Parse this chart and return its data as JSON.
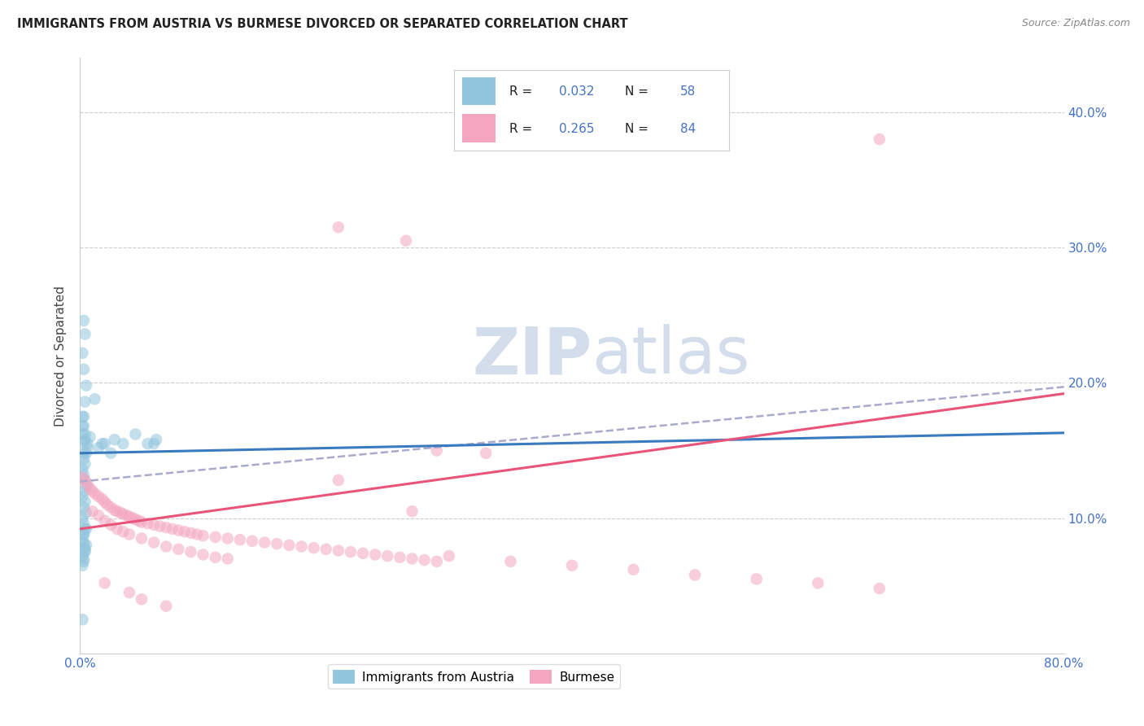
{
  "title": "IMMIGRANTS FROM AUSTRIA VS BURMESE DIVORCED OR SEPARATED CORRELATION CHART",
  "source": "Source: ZipAtlas.com",
  "ylabel": "Divorced or Separated",
  "xlim": [
    0.0,
    0.8
  ],
  "ylim": [
    0.0,
    0.44
  ],
  "x_tick_positions": [
    0.0,
    0.1,
    0.2,
    0.3,
    0.4,
    0.5,
    0.6,
    0.7,
    0.8
  ],
  "x_tick_labels": [
    "0.0%",
    "",
    "",
    "",
    "",
    "",
    "",
    "",
    "80.0%"
  ],
  "y_tick_positions": [
    0.0,
    0.1,
    0.2,
    0.3,
    0.4
  ],
  "y_tick_labels": [
    "",
    "10.0%",
    "20.0%",
    "30.0%",
    "40.0%"
  ],
  "blue_scatter_color": "#92c5de",
  "pink_scatter_color": "#f4a6c0",
  "blue_line_color": "#3a7abf",
  "pink_line_color": "#e8547a",
  "dashed_line_color": "#aaaacc",
  "grid_color": "#cccccc",
  "tick_label_color": "#4472c4",
  "watermark_color": "#ccd8e8",
  "legend_r1_val": "0.032",
  "legend_n1_val": "58",
  "legend_r2_val": "0.265",
  "legend_n2_val": "84",
  "austria_N": 58,
  "burmese_N": 84,
  "blue_line": [
    0.0,
    0.148,
    0.8,
    0.163
  ],
  "pink_line": [
    0.0,
    0.092,
    0.8,
    0.192
  ],
  "dashed_line": [
    0.0,
    0.127,
    0.8,
    0.197
  ],
  "austria_x": [
    0.003,
    0.004,
    0.002,
    0.003,
    0.005,
    0.004,
    0.003,
    0.002,
    0.004,
    0.003,
    0.006,
    0.005,
    0.003,
    0.004,
    0.002,
    0.003,
    0.004,
    0.005,
    0.003,
    0.002,
    0.004,
    0.003,
    0.005,
    0.002,
    0.003,
    0.004,
    0.003,
    0.002,
    0.005,
    0.004,
    0.003,
    0.006,
    0.002,
    0.004,
    0.003,
    0.002,
    0.012,
    0.008,
    0.018,
    0.025,
    0.035,
    0.015,
    0.02,
    0.028,
    0.045,
    0.055,
    0.062,
    0.06,
    0.002,
    0.003,
    0.004,
    0.003,
    0.002,
    0.003,
    0.004,
    0.002,
    0.005,
    0.003
  ],
  "austria_y": [
    0.246,
    0.236,
    0.222,
    0.21,
    0.198,
    0.186,
    0.175,
    0.168,
    0.162,
    0.156,
    0.152,
    0.148,
    0.144,
    0.14,
    0.136,
    0.132,
    0.128,
    0.124,
    0.12,
    0.116,
    0.112,
    0.108,
    0.104,
    0.1,
    0.096,
    0.092,
    0.088,
    0.084,
    0.08,
    0.076,
    0.148,
    0.155,
    0.162,
    0.158,
    0.168,
    0.175,
    0.188,
    0.16,
    0.155,
    0.148,
    0.155,
    0.152,
    0.155,
    0.158,
    0.162,
    0.155,
    0.158,
    0.155,
    0.072,
    0.068,
    0.078,
    0.082,
    0.065,
    0.07,
    0.075,
    0.025,
    0.092,
    0.088
  ],
  "burmese_x": [
    0.002,
    0.004,
    0.006,
    0.008,
    0.01,
    0.012,
    0.015,
    0.018,
    0.02,
    0.022,
    0.025,
    0.028,
    0.03,
    0.033,
    0.035,
    0.038,
    0.04,
    0.043,
    0.045,
    0.048,
    0.05,
    0.055,
    0.06,
    0.065,
    0.07,
    0.075,
    0.08,
    0.085,
    0.09,
    0.095,
    0.1,
    0.11,
    0.12,
    0.13,
    0.14,
    0.15,
    0.16,
    0.17,
    0.18,
    0.19,
    0.2,
    0.21,
    0.22,
    0.23,
    0.24,
    0.25,
    0.26,
    0.27,
    0.28,
    0.29,
    0.01,
    0.015,
    0.02,
    0.025,
    0.03,
    0.035,
    0.04,
    0.05,
    0.06,
    0.07,
    0.08,
    0.09,
    0.1,
    0.11,
    0.12,
    0.3,
    0.35,
    0.4,
    0.45,
    0.5,
    0.55,
    0.6,
    0.65,
    0.21,
    0.27,
    0.29,
    0.33,
    0.21,
    0.265,
    0.02,
    0.04,
    0.05,
    0.07,
    0.65
  ],
  "burmese_y": [
    0.13,
    0.128,
    0.125,
    0.122,
    0.12,
    0.118,
    0.116,
    0.114,
    0.112,
    0.11,
    0.108,
    0.106,
    0.105,
    0.104,
    0.103,
    0.102,
    0.101,
    0.1,
    0.099,
    0.098,
    0.097,
    0.096,
    0.095,
    0.094,
    0.093,
    0.092,
    0.091,
    0.09,
    0.089,
    0.088,
    0.087,
    0.086,
    0.085,
    0.084,
    0.083,
    0.082,
    0.081,
    0.08,
    0.079,
    0.078,
    0.077,
    0.076,
    0.075,
    0.074,
    0.073,
    0.072,
    0.071,
    0.07,
    0.069,
    0.068,
    0.105,
    0.102,
    0.098,
    0.095,
    0.092,
    0.09,
    0.088,
    0.085,
    0.082,
    0.079,
    0.077,
    0.075,
    0.073,
    0.071,
    0.07,
    0.072,
    0.068,
    0.065,
    0.062,
    0.058,
    0.055,
    0.052,
    0.048,
    0.128,
    0.105,
    0.15,
    0.148,
    0.315,
    0.305,
    0.052,
    0.045,
    0.04,
    0.035,
    0.38
  ]
}
